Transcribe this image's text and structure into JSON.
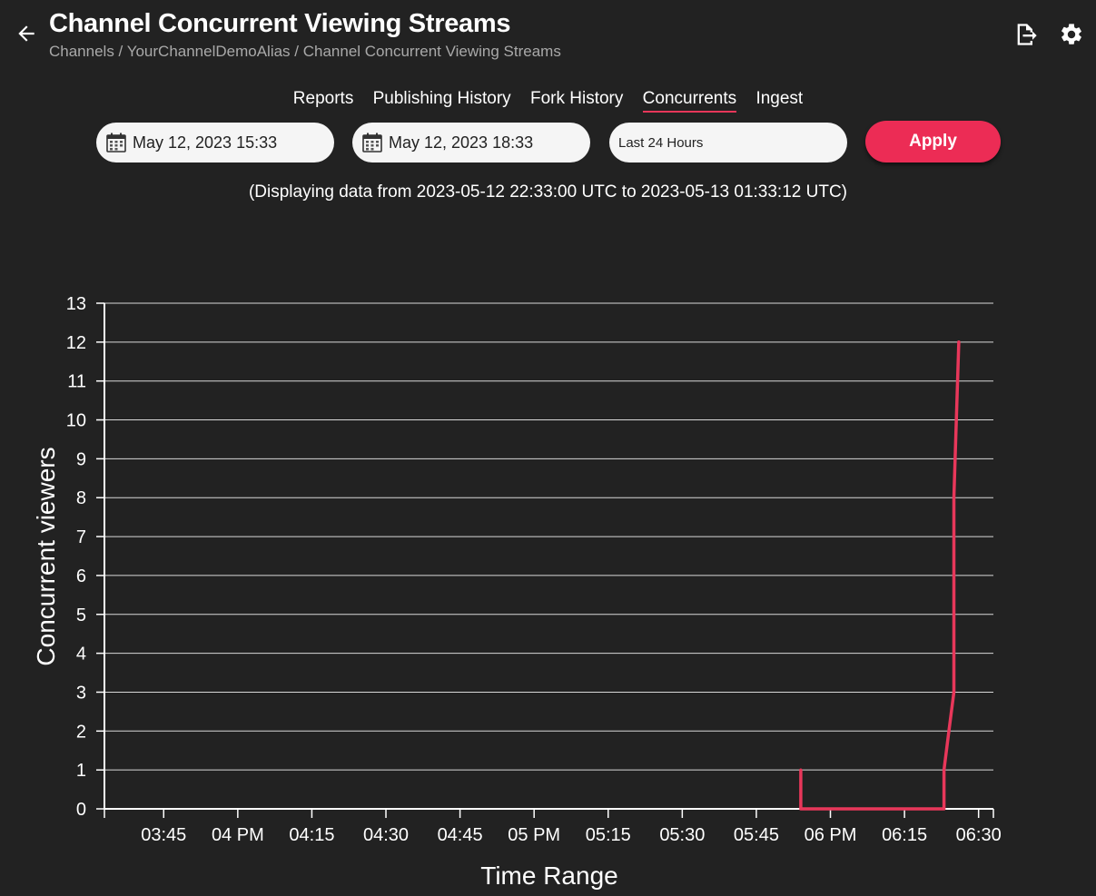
{
  "header": {
    "title": "Channel Concurrent Viewing Streams",
    "breadcrumb": "Channels / YourChannelDemoAlias / Channel Concurrent Viewing Streams"
  },
  "tabs": [
    {
      "label": "Reports",
      "active": false
    },
    {
      "label": "Publishing History",
      "active": false
    },
    {
      "label": "Fork History",
      "active": false
    },
    {
      "label": "Concurrents",
      "active": true
    },
    {
      "label": "Ingest",
      "active": false
    }
  ],
  "filters": {
    "start_date": "May 12, 2023 15:33",
    "end_date": "May 12, 2023 18:33",
    "range_preset": "Last 24 Hours",
    "apply_label": "Apply"
  },
  "range_note": "(Displaying data from 2023-05-12 22:33:00 UTC to 2023-05-13 01:33:12 UTC)",
  "colors": {
    "background": "#222222",
    "accent": "#ec2c55",
    "series": "#e8375a",
    "gridline": "#d8d8d8"
  },
  "chart_data": {
    "type": "line",
    "step": true,
    "xlabel": "Time Range",
    "ylabel": "Concurrent viewers",
    "ylim": [
      0,
      13
    ],
    "yticks": [
      0,
      1,
      2,
      3,
      4,
      5,
      6,
      7,
      8,
      9,
      10,
      11,
      12,
      13
    ],
    "xlim": [
      "15:33",
      "18:33"
    ],
    "xticks": [
      {
        "t": "15:45",
        "label": "03:45"
      },
      {
        "t": "16:00",
        "label": "04 PM"
      },
      {
        "t": "16:15",
        "label": "04:15"
      },
      {
        "t": "16:30",
        "label": "04:30"
      },
      {
        "t": "16:45",
        "label": "04:45"
      },
      {
        "t": "17:00",
        "label": "05 PM"
      },
      {
        "t": "17:15",
        "label": "05:15"
      },
      {
        "t": "17:30",
        "label": "05:30"
      },
      {
        "t": "17:45",
        "label": "05:45"
      },
      {
        "t": "18:00",
        "label": "06 PM"
      },
      {
        "t": "18:15",
        "label": "06:15"
      },
      {
        "t": "18:30",
        "label": "06:30"
      }
    ],
    "grid": true,
    "series": [
      {
        "points": [
          {
            "t": "17:54",
            "y": 1
          },
          {
            "t": "17:54",
            "y": 0
          },
          {
            "t": "18:23",
            "y": 0
          },
          {
            "t": "18:23",
            "y": 1
          },
          {
            "t": "18:24",
            "y": 2
          },
          {
            "t": "18:25",
            "y": 3
          },
          {
            "t": "18:25",
            "y": 4
          },
          {
            "t": "18:25",
            "y": 8
          },
          {
            "t": "18:26",
            "y": 12
          }
        ]
      }
    ]
  }
}
